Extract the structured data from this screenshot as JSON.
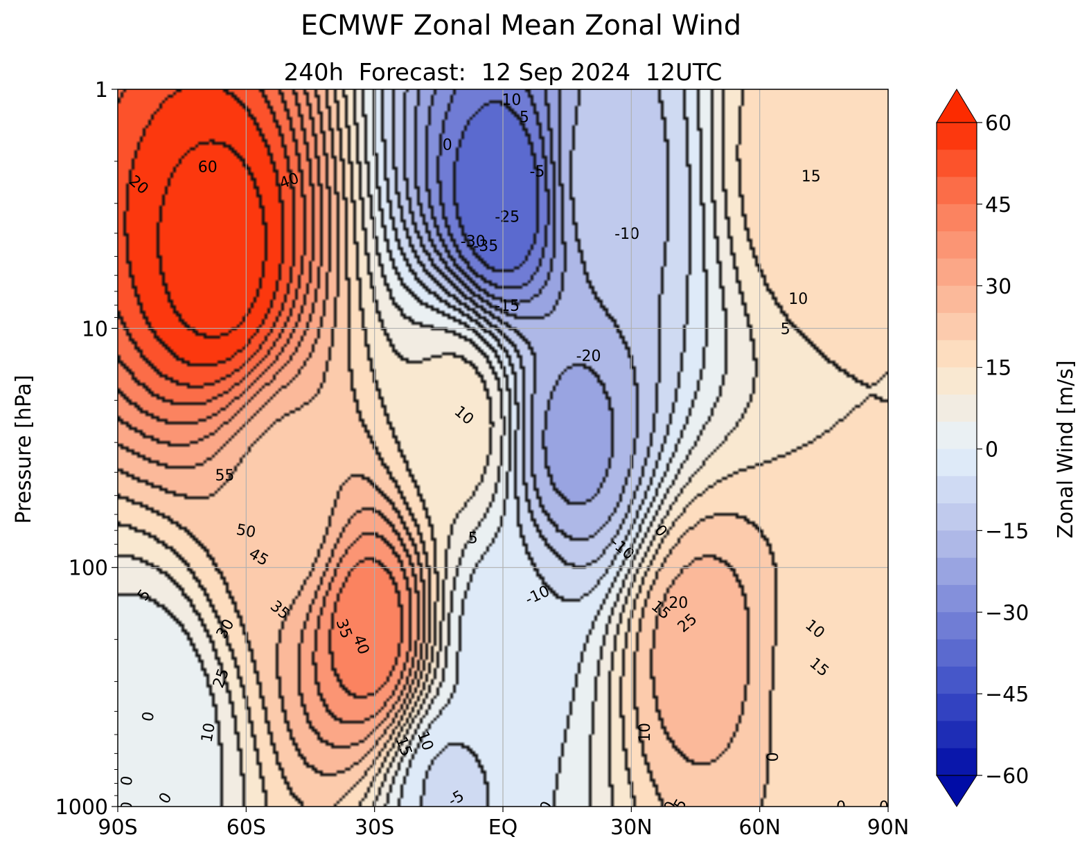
{
  "chart_data": {
    "type": "heatmap",
    "title": "ECMWF Zonal Mean Zonal Wind",
    "subtitle": "240h  Forecast:  12 Sep 2024  12UTC",
    "ylabel": "Pressure [hPa]",
    "colorbar_label": "Zonal Wind [m/s]",
    "x_ticks": [
      {
        "lat": -90,
        "label": "90S"
      },
      {
        "lat": -60,
        "label": "60S"
      },
      {
        "lat": -30,
        "label": "30S"
      },
      {
        "lat": 0,
        "label": "EQ"
      },
      {
        "lat": 30,
        "label": "30N"
      },
      {
        "lat": 60,
        "label": "60N"
      },
      {
        "lat": 90,
        "label": "90N"
      }
    ],
    "y_ticks": [
      {
        "p": 1,
        "label": "1"
      },
      {
        "p": 10,
        "label": "10"
      },
      {
        "p": 100,
        "label": "100"
      },
      {
        "p": 1000,
        "label": "1000"
      }
    ],
    "colorbar_ticks": [
      {
        "v": 60,
        "label": "60"
      },
      {
        "v": 45,
        "label": "45"
      },
      {
        "v": 30,
        "label": "30"
      },
      {
        "v": 15,
        "label": "15"
      },
      {
        "v": 0,
        "label": "0"
      },
      {
        "v": -15,
        "label": "−15"
      },
      {
        "v": -30,
        "label": "−30"
      },
      {
        "v": -45,
        "label": "−45"
      },
      {
        "v": -60,
        "label": "−60"
      }
    ],
    "xlim": [
      -90,
      90
    ],
    "ylim": [
      1000,
      1
    ],
    "y_scale": "log",
    "grid": true,
    "levels": {
      "min": -60,
      "max": 60,
      "step": 5
    },
    "colormap_stops": [
      "#000ca6",
      "#3c4dc6",
      "#7a86d8",
      "#b8c2ea",
      "#e6f2fb",
      "#fde6c8",
      "#fbb091",
      "#fb7a56",
      "#fc2b00"
    ],
    "field_features": [
      {
        "lat": -66,
        "p": 5,
        "value": 63
      },
      {
        "lat": -50,
        "p": 60,
        "value": 22
      },
      {
        "lat": -31,
        "p": 180,
        "value": 44
      },
      {
        "lat": -10,
        "p": 25,
        "value": 13
      },
      {
        "lat": 0,
        "p": 3,
        "value": -40
      },
      {
        "lat": 17,
        "p": 30,
        "value": -22
      },
      {
        "lat": 25,
        "p": 2.5,
        "value": -12
      },
      {
        "lat": 46,
        "p": 220,
        "value": 28
      },
      {
        "lat": 76,
        "p": 300,
        "value": 18
      },
      {
        "lat": 70,
        "p": 2,
        "value": 19
      },
      {
        "lat": -82,
        "p": 500,
        "value": 0
      },
      {
        "lat": 0,
        "p": 200,
        "value": -4
      },
      {
        "lat": -12,
        "p": 900,
        "value": -6
      }
    ],
    "contour_labels": [
      {
        "text": "60",
        "lat": -69,
        "p": 2.1,
        "rot": 0
      },
      {
        "text": "40",
        "lat": -50,
        "p": 2.4,
        "rot": -20
      },
      {
        "text": "20",
        "lat": -85,
        "p": 2.5,
        "rot": 40
      },
      {
        "text": "55",
        "lat": -65,
        "p": 41,
        "rot": 0
      },
      {
        "text": "50",
        "lat": -60,
        "p": 70,
        "rot": 10
      },
      {
        "text": "45",
        "lat": -57,
        "p": 90,
        "rot": 30
      },
      {
        "text": "35",
        "lat": -52,
        "p": 150,
        "rot": 40
      },
      {
        "text": "30",
        "lat": -65,
        "p": 180,
        "rot": -60
      },
      {
        "text": "25",
        "lat": -66,
        "p": 290,
        "rot": -70
      },
      {
        "text": "5",
        "lat": -84,
        "p": 130,
        "rot": -55
      },
      {
        "text": "0",
        "lat": -83,
        "p": 420,
        "rot": -80
      },
      {
        "text": "10",
        "lat": -69,
        "p": 490,
        "rot": -80
      },
      {
        "text": "35",
        "lat": -37,
        "p": 180,
        "rot": 70
      },
      {
        "text": "40",
        "lat": -33,
        "p": 210,
        "rot": 70
      },
      {
        "text": "10",
        "lat": -18,
        "p": 530,
        "rot": 70
      },
      {
        "text": "15",
        "lat": -23,
        "p": 560,
        "rot": 70
      },
      {
        "text": "0",
        "lat": -88,
        "p": 780,
        "rot": -80
      },
      {
        "text": "0",
        "lat": -79,
        "p": 920,
        "rot": -60
      },
      {
        "text": "0",
        "lat": -88,
        "p": 1000,
        "rot": -80
      },
      {
        "text": "10",
        "lat": 2,
        "p": 1.1,
        "rot": 0
      },
      {
        "text": "5",
        "lat": 5,
        "p": 1.3,
        "rot": 0
      },
      {
        "text": "0",
        "lat": -13,
        "p": 1.7,
        "rot": 0
      },
      {
        "text": "-5",
        "lat": 8,
        "p": 2.2,
        "rot": 0
      },
      {
        "text": "-25",
        "lat": 1,
        "p": 3.4,
        "rot": 0
      },
      {
        "text": "-30",
        "lat": -7,
        "p": 4.3,
        "rot": 0
      },
      {
        "text": "-35",
        "lat": -4,
        "p": 4.5,
        "rot": 0
      },
      {
        "text": "-10",
        "lat": 29,
        "p": 4.0,
        "rot": 0
      },
      {
        "text": "-15",
        "lat": 1,
        "p": 8.0,
        "rot": 0
      },
      {
        "text": "-20",
        "lat": 20,
        "p": 13,
        "rot": 0
      },
      {
        "text": "15",
        "lat": 72,
        "p": 2.3,
        "rot": 0
      },
      {
        "text": "10",
        "lat": 69,
        "p": 7.5,
        "rot": 0
      },
      {
        "text": "5",
        "lat": 66,
        "p": 10,
        "rot": 0
      },
      {
        "text": "10",
        "lat": -9,
        "p": 23,
        "rot": 40
      },
      {
        "text": "5",
        "lat": -7,
        "p": 75,
        "rot": 0
      },
      {
        "text": "0",
        "lat": 37,
        "p": 70,
        "rot": 50
      },
      {
        "text": "-10",
        "lat": 28,
        "p": 83,
        "rot": 40
      },
      {
        "text": "-10",
        "lat": 8,
        "p": 130,
        "rot": -25
      },
      {
        "text": "20",
        "lat": 41,
        "p": 140,
        "rot": 0
      },
      {
        "text": "15",
        "lat": 37,
        "p": 150,
        "rot": 40
      },
      {
        "text": "25",
        "lat": 43,
        "p": 170,
        "rot": -40
      },
      {
        "text": "10",
        "lat": 33,
        "p": 490,
        "rot": -90
      },
      {
        "text": "10",
        "lat": 73,
        "p": 180,
        "rot": 40
      },
      {
        "text": "15",
        "lat": 74,
        "p": 260,
        "rot": 40
      },
      {
        "text": "0",
        "lat": 63,
        "p": 620,
        "rot": -90
      },
      {
        "text": "-5",
        "lat": -11,
        "p": 920,
        "rot": -30
      },
      {
        "text": "0",
        "lat": 10,
        "p": 1000,
        "rot": -60
      },
      {
        "text": "-5",
        "lat": 41,
        "p": 1000,
        "rot": -60
      },
      {
        "text": "0",
        "lat": 39,
        "p": 1000,
        "rot": -60
      },
      {
        "text": "0",
        "lat": 79,
        "p": 1000,
        "rot": 0
      },
      {
        "text": "0",
        "lat": 89,
        "p": 1000,
        "rot": 0
      }
    ]
  }
}
